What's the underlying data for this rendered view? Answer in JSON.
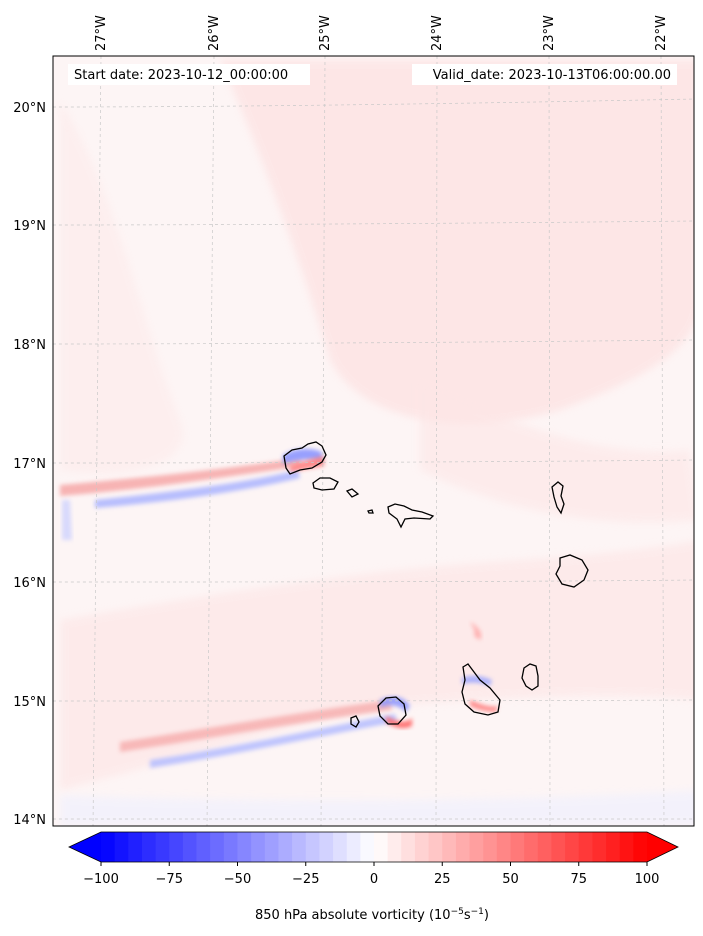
{
  "map": {
    "start_date": "Start date: 2023-10-12_00:00:00",
    "valid_date": "Valid_date: 2023-10-13T06:00:00.00",
    "lon_ticks": [
      "27°W",
      "26°W",
      "25°W",
      "24°W",
      "23°W",
      "22°W"
    ],
    "lat_ticks": [
      "20°N",
      "19°N",
      "18°N",
      "17°N",
      "16°N",
      "15°N",
      "14°N"
    ],
    "field": "850 hPa absolute vorticity",
    "colors": {
      "negative": "#0000ff",
      "zero": "#ffffff",
      "positive": "#ff0000",
      "coast": "#000000",
      "grid": "#bbbbbb"
    }
  },
  "colorbar": {
    "ticks": [
      "−100",
      "−75",
      "−50",
      "−25",
      "0",
      "25",
      "50",
      "75",
      "100"
    ],
    "min": -100,
    "max": 100,
    "step": 5,
    "label_main": "850 hPa absolute vorticity (10",
    "label_sup1": "−5",
    "label_mid": "s",
    "label_sup2": "−1",
    "label_end": ")"
  }
}
